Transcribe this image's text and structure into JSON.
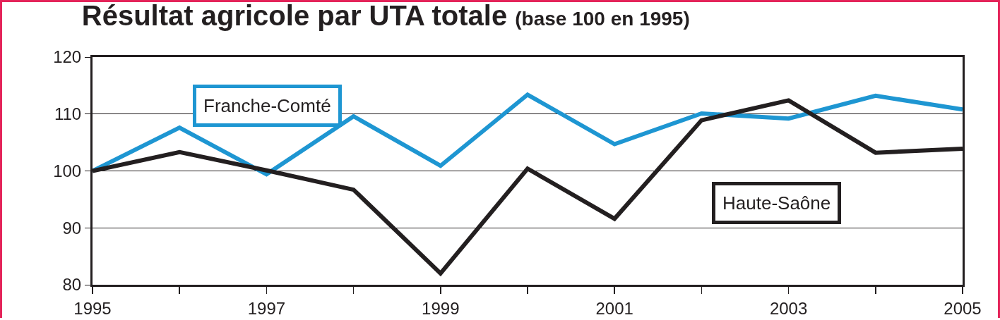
{
  "chart_data": {
    "type": "line",
    "title": "Résultat agricole par UTA totale",
    "subtitle": "(base 100 en 1995)",
    "x": [
      1995,
      1996,
      1997,
      1998,
      1999,
      2000,
      2001,
      2002,
      2003,
      2004,
      2005
    ],
    "series": [
      {
        "name": "Franche-Comté",
        "color": "#1e96d2",
        "values": [
          100,
          107.6,
          99.4,
          109.6,
          100.9,
          113.4,
          104.7,
          110.1,
          109.2,
          113.2,
          110.8
        ]
      },
      {
        "name": "Haute-Saône",
        "color": "#231f20",
        "values": [
          100,
          103.3,
          100.1,
          96.7,
          82,
          100.4,
          91.6,
          108.9,
          112.4,
          103.2,
          103.9
        ]
      }
    ],
    "xlim": [
      1995,
      2005
    ],
    "xticks": [
      1995,
      {
        "value": 1996,
        "label": null
      },
      1997,
      {
        "value": 1998,
        "label": null
      },
      1999,
      {
        "value": 2000,
        "label": null
      },
      2001,
      {
        "value": 2002,
        "label": null
      },
      2003,
      {
        "value": 2004,
        "label": null
      },
      2005
    ],
    "ylim": [
      80,
      120
    ],
    "yticks": [
      80,
      90,
      100,
      110,
      120
    ],
    "grid": "y",
    "legend": false,
    "marker": "none",
    "line_style": "solid"
  }
}
